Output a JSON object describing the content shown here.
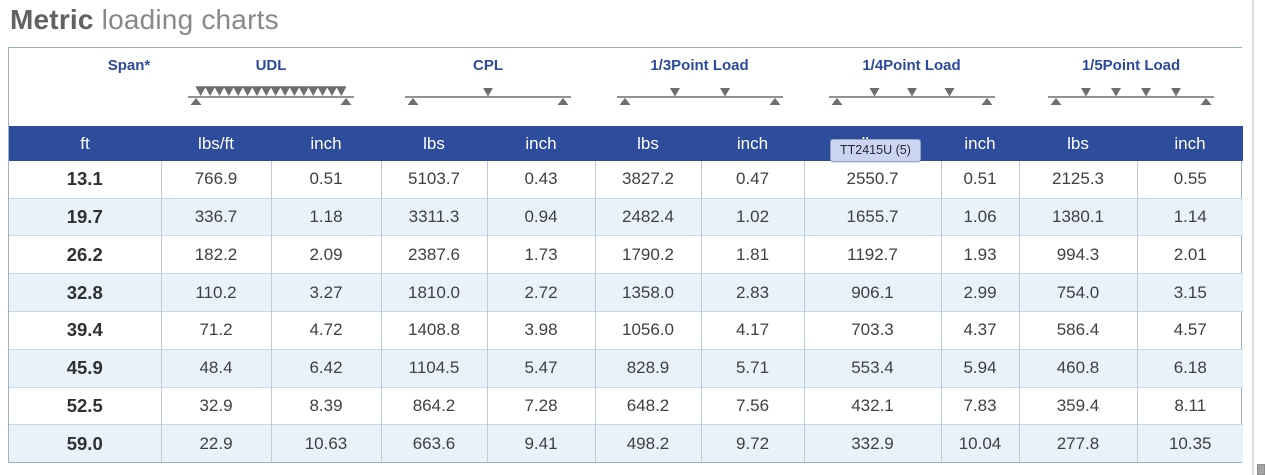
{
  "title": {
    "bold": "Metric",
    "rest": " loading charts"
  },
  "tooltip": {
    "text": "TT2415U (5)"
  },
  "colors": {
    "header_blue": "#2d4c9c",
    "group_label_blue": "#2b4a9c",
    "row_alt_blue": "#e9f2f9",
    "grid_line": "#b9cbde",
    "title_gray": "#5f6163",
    "diagram_gray": "#6e6e6e",
    "tooltip_bg": "#ccd5ef"
  },
  "table": {
    "groups": [
      {
        "label": "Span*",
        "span": 1,
        "diagram": null
      },
      {
        "label": "UDL",
        "span": 2,
        "diagram": {
          "kind": "udl"
        }
      },
      {
        "label": "CPL",
        "span": 2,
        "diagram": {
          "kind": "points",
          "fractions": [
            0.5
          ]
        }
      },
      {
        "label": "1/3Point Load",
        "span": 2,
        "diagram": {
          "kind": "points",
          "fractions": [
            0.333,
            0.667
          ]
        }
      },
      {
        "label": "1/4Point Load",
        "span": 2,
        "diagram": {
          "kind": "points",
          "fractions": [
            0.25,
            0.5,
            0.75
          ]
        }
      },
      {
        "label": "1/5Point Load",
        "span": 2,
        "diagram": {
          "kind": "points",
          "fractions": [
            0.2,
            0.4,
            0.6,
            0.8
          ]
        }
      }
    ],
    "units": [
      "ft",
      "lbs/ft",
      "inch",
      "lbs",
      "inch",
      "lbs",
      "inch",
      "lbs",
      "inch",
      "lbs",
      "inch"
    ],
    "rows": [
      [
        "13.1",
        "766.9",
        "0.51",
        "5103.7",
        "0.43",
        "3827.2",
        "0.47",
        "2550.7",
        "0.51",
        "2125.3",
        "0.55"
      ],
      [
        "19.7",
        "336.7",
        "1.18",
        "3311.3",
        "0.94",
        "2482.4",
        "1.02",
        "1655.7",
        "1.06",
        "1380.1",
        "1.14"
      ],
      [
        "26.2",
        "182.2",
        "2.09",
        "2387.6",
        "1.73",
        "1790.2",
        "1.81",
        "1192.7",
        "1.93",
        "994.3",
        "2.01"
      ],
      [
        "32.8",
        "110.2",
        "3.27",
        "1810.0",
        "2.72",
        "1358.0",
        "2.83",
        "906.1",
        "2.99",
        "754.0",
        "3.15"
      ],
      [
        "39.4",
        "71.2",
        "4.72",
        "1408.8",
        "3.98",
        "1056.0",
        "4.17",
        "703.3",
        "4.37",
        "586.4",
        "4.57"
      ],
      [
        "45.9",
        "48.4",
        "6.42",
        "1104.5",
        "5.47",
        "828.9",
        "5.71",
        "553.4",
        "5.94",
        "460.8",
        "6.18"
      ],
      [
        "52.5",
        "32.9",
        "8.39",
        "864.2",
        "7.28",
        "648.2",
        "7.56",
        "432.1",
        "7.83",
        "359.4",
        "8.11"
      ],
      [
        "59.0",
        "22.9",
        "10.63",
        "663.6",
        "9.41",
        "498.2",
        "9.72",
        "332.9",
        "10.04",
        "277.8",
        "10.35"
      ]
    ]
  }
}
